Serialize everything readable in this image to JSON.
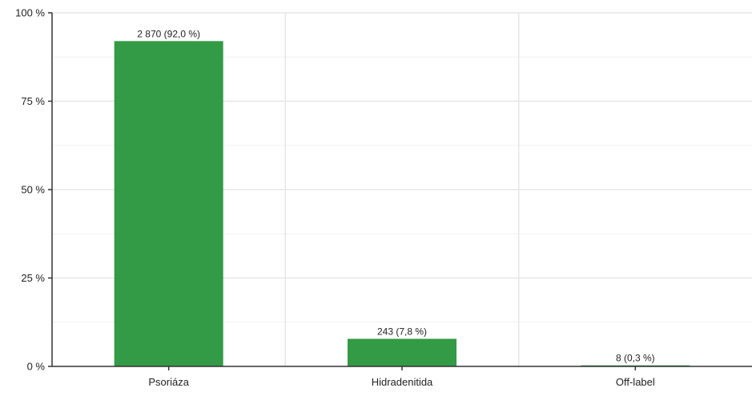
{
  "chart_data": {
    "type": "bar",
    "categories": [
      "Psoriáza",
      "Hidradenitida",
      "Off-label"
    ],
    "values": [
      92.0,
      7.8,
      0.3
    ],
    "data_labels": [
      "2 870 (92,0 %)",
      "243 (7,8 %)",
      "8 (0,3 %)"
    ],
    "ylim": [
      0,
      100
    ],
    "yticks": [
      0,
      25,
      50,
      75,
      100
    ],
    "ytick_labels": [
      "0 %",
      "25 %",
      "50 %",
      "75 %",
      "100 %"
    ],
    "grid": true,
    "bar_color": "#339a45",
    "grid_color": "#e6e6e6",
    "axis_color": "#333333"
  }
}
